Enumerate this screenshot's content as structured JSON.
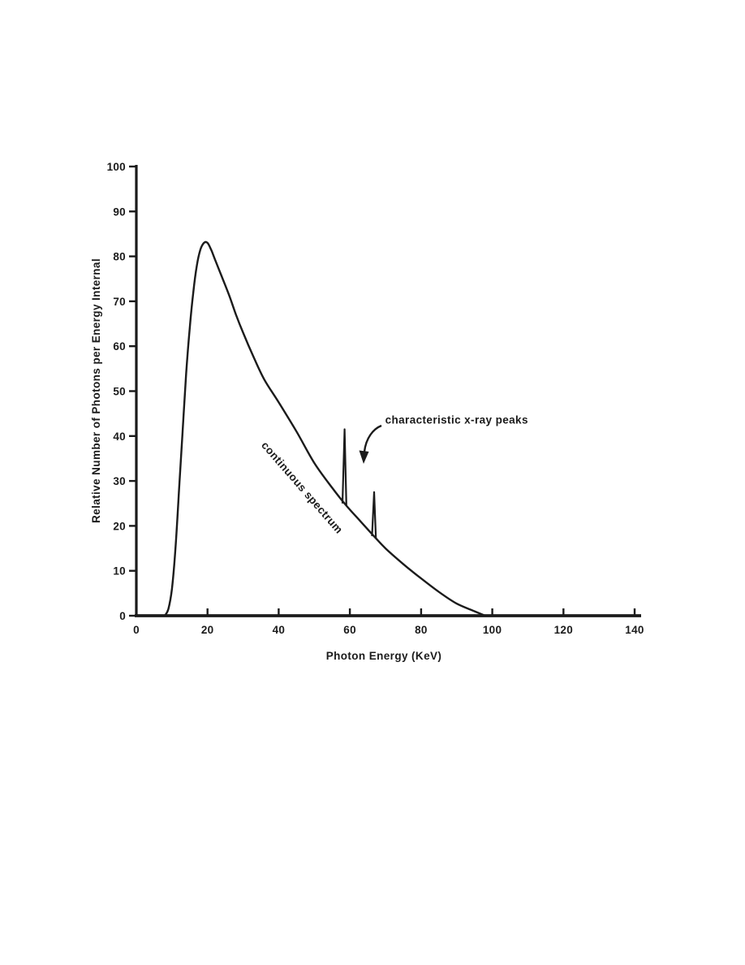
{
  "figure": {
    "background_color": "#ffffff",
    "ink_color": "#1b1b1b"
  },
  "chart_data": {
    "type": "line",
    "title": "",
    "xlabel": "Photon Energy (KeV)",
    "ylabel": "Relative Number of Photons per Energy Internal",
    "xlim": [
      0,
      140
    ],
    "ylim": [
      0,
      100
    ],
    "xticks": [
      0,
      20,
      40,
      60,
      80,
      100,
      120,
      140
    ],
    "yticks": [
      0,
      10,
      20,
      30,
      40,
      50,
      60,
      70,
      80,
      90,
      100
    ],
    "grid": false,
    "legend": "none",
    "series": [
      {
        "name": "continuous spectrum",
        "points": [
          [
            8,
            0
          ],
          [
            9,
            1.5
          ],
          [
            10,
            6
          ],
          [
            11,
            15
          ],
          [
            12,
            28
          ],
          [
            13,
            41
          ],
          [
            14,
            54
          ],
          [
            15,
            64
          ],
          [
            16,
            72
          ],
          [
            17,
            78
          ],
          [
            18,
            81.5
          ],
          [
            19,
            83
          ],
          [
            20,
            83
          ],
          [
            21,
            81.5
          ],
          [
            22,
            79.5
          ],
          [
            24,
            75.5
          ],
          [
            26,
            71.5
          ],
          [
            28,
            67
          ],
          [
            30,
            63
          ],
          [
            33,
            57.5
          ],
          [
            36,
            52.5
          ],
          [
            40,
            47.5
          ],
          [
            45,
            41
          ],
          [
            50,
            34
          ],
          [
            55,
            28.5
          ],
          [
            59,
            24.5
          ],
          [
            63,
            21
          ],
          [
            67,
            17.5
          ],
          [
            70,
            15
          ],
          [
            75,
            11.5
          ],
          [
            80,
            8.3
          ],
          [
            85,
            5.3
          ],
          [
            90,
            2.7
          ],
          [
            95,
            1
          ],
          [
            98,
            0
          ]
        ]
      }
    ],
    "characteristic_peaks": [
      {
        "x": 58.5,
        "base": 25.0,
        "top": 41.5
      },
      {
        "x": 66.8,
        "base": 17.7,
        "top": 27.5
      }
    ],
    "annotations": [
      {
        "text": "continuous spectrum",
        "x": 45.8,
        "y": 28.0,
        "rotation_deg": 49,
        "anchor": "middle"
      },
      {
        "text": "characteristic x-ray peaks",
        "x": 69.9,
        "y": 42.8,
        "rotation_deg": 0,
        "anchor": "start"
      }
    ]
  }
}
